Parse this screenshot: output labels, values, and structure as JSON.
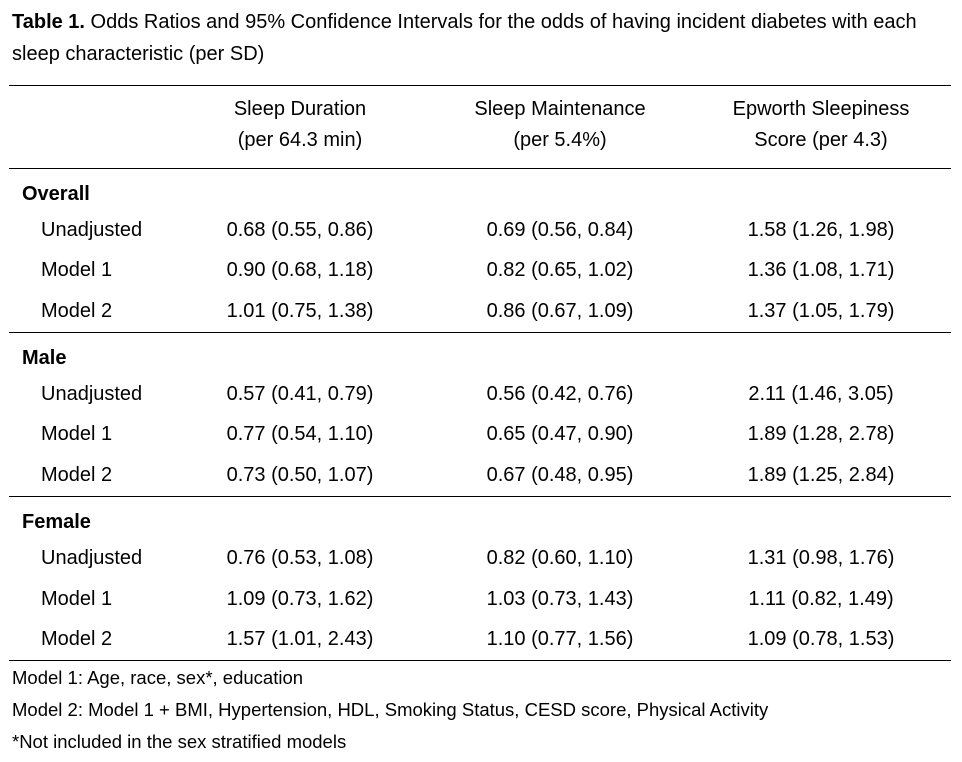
{
  "caption": {
    "label": "Table 1.",
    "text": " Odds Ratios and 95% Confidence Intervals for the odds of having incident diabetes with each sleep characteristic (per SD)"
  },
  "columns": [
    {
      "line1": "Sleep Duration",
      "line2": "(per 64.3 min)"
    },
    {
      "line1": "Sleep Maintenance",
      "line2": "(per 5.4%)"
    },
    {
      "line1": "Epworth Sleepiness",
      "line2": "Score (per 4.3)"
    }
  ],
  "groups": [
    {
      "name": "Overall",
      "rows": [
        {
          "label": "Unadjusted",
          "values": [
            "0.68 (0.55, 0.86)",
            "0.69 (0.56, 0.84)",
            "1.58 (1.26, 1.98)"
          ]
        },
        {
          "label": "Model 1",
          "values": [
            "0.90 (0.68, 1.18)",
            "0.82 (0.65, 1.02)",
            "1.36 (1.08, 1.71)"
          ]
        },
        {
          "label": "Model 2",
          "values": [
            "1.01 (0.75, 1.38)",
            "0.86 (0.67, 1.09)",
            "1.37 (1.05, 1.79)"
          ]
        }
      ]
    },
    {
      "name": "Male",
      "rows": [
        {
          "label": "Unadjusted",
          "values": [
            "0.57 (0.41, 0.79)",
            "0.56 (0.42, 0.76)",
            "2.11 (1.46, 3.05)"
          ]
        },
        {
          "label": "Model 1",
          "values": [
            "0.77 (0.54, 1.10)",
            "0.65 (0.47, 0.90)",
            "1.89 (1.28, 2.78)"
          ]
        },
        {
          "label": "Model 2",
          "values": [
            "0.73 (0.50, 1.07)",
            "0.67 (0.48, 0.95)",
            "1.89 (1.25, 2.84)"
          ]
        }
      ]
    },
    {
      "name": "Female",
      "rows": [
        {
          "label": "Unadjusted",
          "values": [
            "0.76 (0.53, 1.08)",
            "0.82 (0.60, 1.10)",
            "1.31 (0.98, 1.76)"
          ]
        },
        {
          "label": "Model 1",
          "values": [
            "1.09 (0.73, 1.62)",
            "1.03 (0.73, 1.43)",
            "1.11 (0.82, 1.49)"
          ]
        },
        {
          "label": "Model 2",
          "values": [
            "1.57 (1.01, 2.43)",
            "1.10 (0.77, 1.56)",
            "1.09 (0.78, 1.53)"
          ]
        }
      ]
    }
  ],
  "footnotes": [
    "Model 1: Age, race, sex*, education",
    "Model 2: Model 1 + BMI, Hypertension, HDL, Smoking Status, CESD score, Physical Activity",
    "*Not included in the sex stratified models"
  ]
}
